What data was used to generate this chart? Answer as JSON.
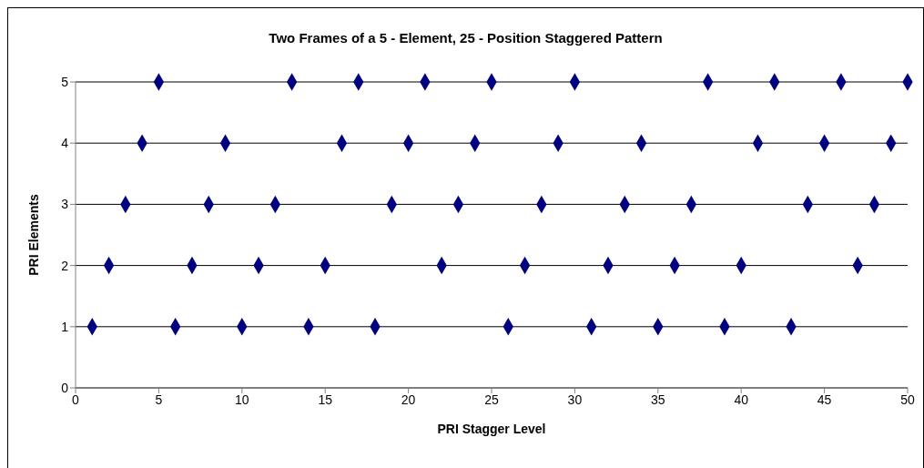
{
  "chart_data": {
    "type": "scatter",
    "title": "Two Frames of a 5 - Element, 25 - Position Staggered Pattern",
    "xlabel": "PRI Stagger Level",
    "ylabel": "PRI Elements",
    "x": [
      1,
      2,
      3,
      4,
      5,
      6,
      7,
      8,
      9,
      10,
      11,
      12,
      13,
      14,
      15,
      16,
      17,
      18,
      19,
      20,
      21,
      22,
      23,
      24,
      25,
      26,
      27,
      28,
      29,
      30,
      31,
      32,
      33,
      34,
      35,
      36,
      37,
      38,
      39,
      40,
      41,
      42,
      43,
      44,
      45,
      46,
      47,
      48,
      49,
      50
    ],
    "values": [
      1,
      2,
      3,
      4,
      5,
      1,
      2,
      3,
      4,
      1,
      2,
      3,
      5,
      1,
      2,
      4,
      5,
      1,
      3,
      4,
      5,
      2,
      3,
      4,
      5,
      1,
      2,
      3,
      4,
      5,
      1,
      2,
      3,
      4,
      1,
      2,
      3,
      5,
      1,
      2,
      4,
      5,
      1,
      3,
      4,
      5,
      2,
      3,
      4,
      5
    ],
    "color": "#000080",
    "marker": "diamond",
    "grid": "y",
    "xlim": [
      0,
      50
    ],
    "xticks": [
      0,
      5,
      10,
      15,
      20,
      25,
      30,
      35,
      40,
      45,
      50
    ],
    "ylim": [
      0,
      5
    ],
    "yticks": [
      0,
      1,
      2,
      3,
      4,
      5
    ]
  }
}
